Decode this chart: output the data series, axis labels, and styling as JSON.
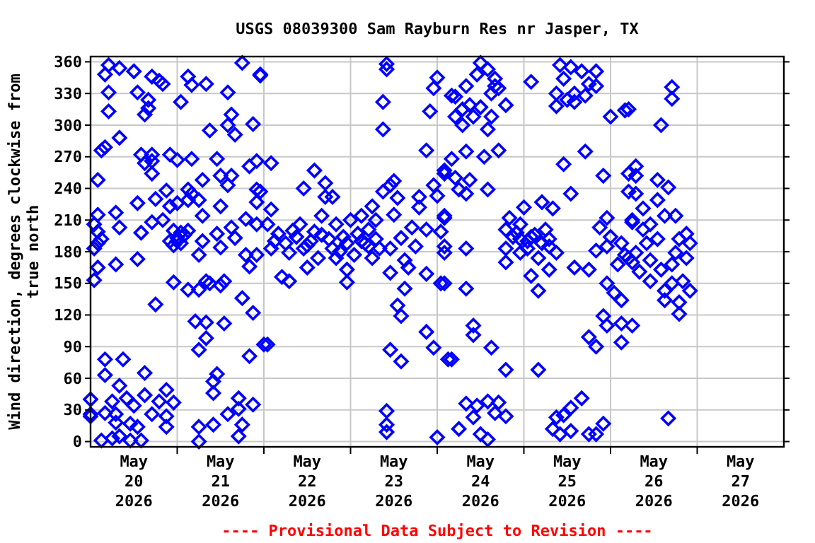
{
  "chart_data": {
    "type": "scatter",
    "title": "USGS 08039300 Sam Rayburn Res nr Jasper, TX",
    "ylabel": "Wind direction, degrees clockwise from true north",
    "annotations": [
      "---- Provisional Data Subject to Revision ----"
    ],
    "marker": "diamond",
    "grid": true,
    "xlim": [
      "2026-05-20",
      "2026-05-28"
    ],
    "xticks": [
      {
        "value": "2026-05-21",
        "label": null
      },
      {
        "value": "2026-05-22",
        "label": null
      },
      {
        "value": "2026-05-23",
        "label": null
      },
      {
        "value": "2026-05-24",
        "label": null
      },
      {
        "value": "2026-05-25",
        "label": null
      },
      {
        "value": "2026-05-26",
        "label": null
      },
      {
        "value": "2026-05-27",
        "label": null
      },
      {
        "value": "2026-05-20T12:00",
        "label": "May\n20\n2026"
      },
      {
        "value": "2026-05-21T12:00",
        "label": "May\n21\n2026"
      },
      {
        "value": "2026-05-22T12:00",
        "label": "May\n22\n2026"
      },
      {
        "value": "2026-05-23T12:00",
        "label": "May\n23\n2026"
      },
      {
        "value": "2026-05-24T12:00",
        "label": "May\n24\n2026"
      },
      {
        "value": "2026-05-25T12:00",
        "label": "May\n25\n2026"
      },
      {
        "value": "2026-05-26T12:00",
        "label": "May\n26\n2026"
      },
      {
        "value": "2026-05-27T12:00",
        "label": "May\n27\n2026"
      }
    ],
    "ylim": [
      -5,
      365
    ],
    "yticks": [
      0,
      30,
      60,
      90,
      120,
      150,
      180,
      210,
      240,
      270,
      300,
      330,
      360
    ],
    "series": [
      {
        "color": "#0000ff",
        "x": [
          "2026-05-20T05:00",
          "2026-05-20T08:00",
          "2026-05-20T12:00",
          "2026-05-20T04:00",
          "2026-05-20T17:00",
          "2026-05-20T19:00",
          "2026-05-20T20:00",
          "2026-05-21T03:00",
          "2026-05-21T04:00",
          "2026-05-21T08:00",
          "2026-05-21T18:00",
          "2026-05-21T23:00",
          "2026-05-20T05:00",
          "2026-05-20T13:00",
          "2026-05-20T16:00",
          "2026-05-21T14:00",
          "2026-05-21T01:00",
          "2026-05-20T05:00",
          "2026-05-20T15:00",
          "2026-05-20T16:00",
          "2026-05-21T15:00",
          "2026-05-21T14:00",
          "2026-05-21T21:00",
          "2026-05-21T09:00",
          "2026-05-21T16:00",
          "2026-05-20T08:00",
          "2026-05-20T04:00",
          "2026-05-20T03:00",
          "2026-05-20T14:00",
          "2026-05-20T17:00",
          "2026-05-20T22:00",
          "2026-05-20T15:00",
          "2026-05-20T17:00",
          "2026-05-21T00:00",
          "2026-05-21T04:00",
          "2026-05-21T11:00",
          "2026-05-21T20:00",
          "2026-05-21T22:00",
          "2026-05-20T17:00",
          "2026-05-20T02:00",
          "2026-05-21T07:00",
          "2026-05-21T12:00",
          "2026-05-21T15:00",
          "2026-05-21T14:00",
          "2026-05-20T21:00",
          "2026-05-21T03:00",
          "2026-05-21T04:00",
          "2026-05-21T22:00",
          "2026-05-20T13:00",
          "2026-05-20T18:00",
          "2026-05-20T22:00",
          "2026-05-21T00:00",
          "2026-05-21T03:00",
          "2026-05-21T06:00",
          "2026-05-21T12:00",
          "2026-05-21T22:00",
          "2026-05-20T02:00",
          "2026-05-20T07:00",
          "2026-05-21T07:00",
          "2026-05-21T19:00",
          "2026-05-21T22:00",
          "2026-05-20T01:00",
          "2026-05-20T08:00",
          "2026-05-20T17:00",
          "2026-05-20T20:00",
          "2026-05-20T02:00",
          "2026-05-20T03:00",
          "2026-05-20T14:00",
          "2026-05-20T23:00",
          "2026-05-21T03:00",
          "2026-05-21T00:00",
          "2026-05-21T01:00",
          "2026-05-21T11:00",
          "2026-05-21T15:00",
          "2026-05-21T16:00",
          "2026-05-21T07:00",
          "2026-05-20T01:00",
          "2026-05-20T02:00",
          "2026-05-21T06:00",
          "2026-05-21T12:00",
          "2026-05-21T19:00",
          "2026-05-21T22:00",
          "2026-05-21T20:00",
          "2026-05-20T13:00",
          "2026-05-20T07:00",
          "2026-05-20T02:00",
          "2026-05-20T01:00",
          "2026-05-20T23:00",
          "2026-05-21T03:00",
          "2026-05-21T06:00",
          "2026-05-21T08:00",
          "2026-05-21T09:00",
          "2026-05-21T12:00",
          "2026-05-21T13:00",
          "2026-05-21T18:00",
          "2026-05-20T18:00",
          "2026-05-21T21:00",
          "2026-05-21T05:00",
          "2026-05-21T08:00",
          "2026-05-21T13:00",
          "2026-05-21T08:00",
          "2026-05-21T06:00",
          "2026-05-22T00:00",
          "2026-05-20T04:00",
          "2026-05-20T09:00",
          "2026-05-21T20:00",
          "2026-05-20T04:00",
          "2026-05-20T15:00",
          "2026-05-21T11:00",
          "2026-05-21T10:00",
          "2026-05-20T08:00",
          "2026-05-20T00:00",
          "2026-05-20T21:00",
          "2026-05-21T10:00",
          "2026-05-20T15:00",
          "2026-05-21T17:00",
          "2026-05-20T06:00",
          "2026-05-20T10:00",
          "2026-05-20T19:00",
          "2026-05-20T23:00",
          "2026-05-21T21:00",
          "2026-05-20T12:00",
          "2026-05-20T00:00",
          "2026-05-20T07:00",
          "2026-05-20T17:00",
          "2026-05-20T21:00",
          "2026-05-21T14:00",
          "2026-05-21T17:00",
          "2026-05-20T11:00",
          "2026-05-20T13:00",
          "2026-05-20T07:00",
          "2026-05-20T21:00",
          "2026-05-21T10:00",
          "2026-05-21T06:00",
          "2026-05-21T18:00",
          "2026-05-20T03:00",
          "2026-05-20T06:00",
          "2026-05-20T08:00",
          "2026-05-20T11:00",
          "2026-05-20T14:00",
          "2026-05-21T06:00",
          "2026-05-21T17:00",
          "2026-05-20T00:00",
          "2026-05-20T04:00",
          "2026-05-21T00:00",
          "2026-05-20T22:00",
          "2026-05-21T02:00",
          "2026-05-20T23:00",
          "2026-05-21T01:00",
          "2026-05-21T23:00",
          "2026-05-22T02:00",
          "2026-05-21T23:00",
          "2026-05-22T14:00",
          "2026-05-22T11:00",
          "2026-05-22T17:00",
          "2026-05-22T19:00",
          "2026-05-22T17:00",
          "2026-05-22T02:00",
          "2026-05-22T05:00",
          "2026-05-22T07:00",
          "2026-05-22T23:00",
          "2026-05-22T23:00",
          "2026-05-22T01:00",
          "2026-05-22T01:00",
          "2026-05-22T02:00",
          "2026-05-22T04:00",
          "2026-05-22T06:00",
          "2026-05-22T07:00",
          "2026-05-22T09:00",
          "2026-05-22T10:00",
          "2026-05-22T11:00",
          "2026-05-22T12:00",
          "2026-05-22T13:00",
          "2026-05-22T14:00",
          "2026-05-22T15:00",
          "2026-05-22T16:00",
          "2026-05-22T18:00",
          "2026-05-22T19:00",
          "2026-05-22T20:00",
          "2026-05-22T20:00",
          "2026-05-22T22:00",
          "2026-05-22T23:00",
          "2026-05-23T00:00",
          "2026-05-23T01:00",
          "2026-05-23T02:00",
          "2026-05-23T03:00",
          "2026-05-23T04:00",
          "2026-05-23T05:00",
          "2026-05-23T06:00",
          "2026-05-23T06:00",
          "2026-05-23T07:00",
          "2026-05-23T07:00",
          "2026-05-23T08:00",
          "2026-05-23T09:00",
          "2026-05-23T10:00",
          "2026-05-23T10:00",
          "2026-05-23T09:00",
          "2026-05-23T09:00",
          "2026-05-23T11:00",
          "2026-05-23T12:00",
          "2026-05-23T13:00",
          "2026-05-23T12:00",
          "2026-05-23T11:00",
          "2026-05-23T11:00",
          "2026-05-23T14:00",
          "2026-05-23T15:00",
          "2026-05-23T15:00",
          "2026-05-23T13:00",
          "2026-05-23T14:00",
          "2026-05-23T11:00",
          "2026-05-23T14:00",
          "2026-05-23T10:00",
          "2026-05-23T10:00",
          "2026-05-23T10:00",
          "2026-05-23T16:00",
          "2026-05-23T17:00",
          "2026-05-23T19:00",
          "2026-05-23T19:00",
          "2026-05-23T18:00",
          "2026-05-23T21:00",
          "2026-05-23T21:00",
          "2026-05-23T22:00",
          "2026-05-23T23:00",
          "2026-05-24T00:00",
          "2026-05-23T21:00",
          "2026-05-23T21:00",
          "2026-05-23T23:00",
          "2026-05-24T00:00",
          "2026-05-24T01:00",
          "2026-05-24T02:00",
          "2026-05-24T01:00",
          "2026-05-24T02:00",
          "2026-05-24T00:00",
          "2026-05-24T02:00",
          "2026-05-23T23:00",
          "2026-05-24T04:00",
          "2026-05-24T03:00",
          "2026-05-22T03:00",
          "2026-05-22T08:00",
          "2026-05-22T12:00",
          "2026-05-22T16:00",
          "2026-05-22T21:00",
          "2026-05-23T03:00",
          "2026-05-23T05:00",
          "2026-05-24T12:00",
          "2026-05-24T11:00",
          "2026-05-24T14:00",
          "2026-05-24T16:00",
          "2026-05-24T16:00",
          "2026-05-24T17:00",
          "2026-05-24T08:00",
          "2026-05-24T05:00",
          "2026-05-24T15:00",
          "2026-05-24T19:00",
          "2026-05-24T07:00",
          "2026-05-24T09:00",
          "2026-05-24T12:00",
          "2026-05-24T05:00",
          "2026-05-24T10:00",
          "2026-05-24T15:00",
          "2026-05-24T07:00",
          "2026-05-24T14:00",
          "2026-05-25T02:00",
          "2026-05-25T10:00",
          "2026-05-25T13:00",
          "2026-05-25T16:00",
          "2026-05-25T20:00",
          "2026-05-25T11:00",
          "2026-05-25T18:00",
          "2026-05-25T20:00",
          "2026-05-25T09:00",
          "2026-05-25T14:00",
          "2026-05-25T17:00",
          "2026-05-25T09:00",
          "2026-05-25T12:00",
          "2026-05-25T14:00",
          "2026-05-26T00:00",
          "2026-05-26T04:00",
          "2026-05-24T04:00",
          "2026-05-24T08:00",
          "2026-05-24T13:00",
          "2026-05-24T17:00",
          "2026-05-24T02:00",
          "2026-05-24T05:00",
          "2026-05-24T09:00",
          "2026-05-24T06:00",
          "2026-05-24T08:00",
          "2026-05-24T14:00",
          "2026-05-24T02:00",
          "2026-05-24T02:00",
          "2026-05-24T08:00",
          "2026-05-24T02:00",
          "2026-05-24T08:00",
          "2026-05-25T17:00",
          "2026-05-25T11:00",
          "2026-05-25T13:00",
          "2026-05-25T22:00",
          "2026-05-26T05:00",
          "2026-05-26T05:00",
          "2026-05-25T23:00",
          "2026-05-26T06:00",
          "2026-05-25T00:00",
          "2026-05-25T05:00",
          "2026-05-25T08:00",
          "2026-05-24T20:00",
          "2026-05-24T23:00",
          "2026-05-24T19:00",
          "2026-05-24T21:00",
          "2026-05-24T23:00",
          "2026-05-25T02:00",
          "2026-05-25T06:00",
          "2026-05-25T07:00",
          "2026-05-24T19:00",
          "2026-05-24T23:00",
          "2026-05-25T01:00",
          "2026-05-25T04:00",
          "2026-05-25T07:00",
          "2026-05-25T09:00",
          "2026-05-24T19:00",
          "2026-05-25T02:00",
          "2026-05-25T07:00",
          "2026-05-25T04:00",
          "2026-05-25T14:00",
          "2026-05-25T18:00",
          "2026-05-25T21:00",
          "2026-05-26T00:00",
          "2026-05-25T20:00",
          "2026-05-25T23:00",
          "2026-05-26T03:00",
          "2026-05-26T04:00",
          "2026-05-26T02:00",
          "2026-05-25T23:00",
          "2026-05-26T01:00",
          "2026-05-26T03:00",
          "2026-05-26T06:00",
          "2026-05-25T22:00",
          "2026-05-25T23:00",
          "2026-05-26T03:00",
          "2026-05-26T06:00",
          "2026-05-25T18:00",
          "2026-05-25T20:00",
          "2026-05-26T03:00",
          "2026-05-24T10:00",
          "2026-05-24T10:00",
          "2026-05-24T15:00",
          "2026-05-24T04:00",
          "2026-05-24T19:00",
          "2026-05-25T04:00",
          "2026-05-24T08:00",
          "2026-05-24T11:00",
          "2026-05-24T14:00",
          "2026-05-24T17:00",
          "2026-05-24T10:00",
          "2026-05-24T16:00",
          "2026-05-24T19:00",
          "2026-05-24T06:00",
          "2026-05-24T12:00",
          "2026-05-24T14:00",
          "2026-05-25T16:00",
          "2026-05-25T13:00",
          "2026-05-25T11:00",
          "2026-05-25T09:00",
          "2026-05-25T08:00",
          "2026-05-25T10:00",
          "2026-05-25T13:00",
          "2026-05-25T18:00",
          "2026-05-25T20:00",
          "2026-05-25T22:00",
          "2026-05-25T01:00",
          "2026-05-24T22:00",
          "2026-05-25T05:00",
          "2026-05-25T03:00",
          "2026-05-26T17:00",
          "2026-05-26T17:00",
          "2026-05-26T14:00",
          "2026-05-26T05:00",
          "2026-05-26T07:00",
          "2026-05-26T07:00",
          "2026-05-26T13:00",
          "2026-05-26T16:00",
          "2026-05-26T13:00",
          "2026-05-26T07:00",
          "2026-05-26T09:00",
          "2026-05-26T15:00",
          "2026-05-26T18:00",
          "2026-05-26T11:00",
          "2026-05-26T09:00",
          "2026-05-26T06:00",
          "2026-05-26T21:00",
          "2026-05-26T19:00",
          "2026-05-26T22:00",
          "2026-05-26T10:00",
          "2026-05-26T13:00",
          "2026-05-26T07:00",
          "2026-05-26T18:00",
          "2026-05-26T21:00",
          "2026-05-26T11:00",
          "2026-05-26T14:00",
          "2026-05-26T17:00",
          "2026-05-26T08:00",
          "2026-05-26T11:00",
          "2026-05-26T17:00",
          "2026-05-26T20:00",
          "2026-05-26T22:00",
          "2026-05-26T15:00",
          "2026-05-26T15:00",
          "2026-05-26T19:00",
          "2026-05-26T19:00",
          "2026-05-26T16:00",
          "2026-05-26T05:00"
        ],
        "values": [
          357,
          354,
          351,
          348,
          346,
          342,
          339,
          346,
          338,
          339,
          359,
          347,
          331,
          331,
          324,
          331,
          322,
          313,
          310,
          316,
          310,
          300,
          301,
          295,
          291,
          288,
          279,
          276,
          272,
          272,
          272,
          264,
          266,
          267,
          268,
          268,
          261,
          266,
          254,
          248,
          248,
          252,
          252,
          243,
          238,
          239,
          235,
          239,
          226,
          230,
          223,
          226,
          229,
          229,
          223,
          227,
          215,
          217,
          214,
          211,
          206,
          206,
          203,
          208,
          210,
          199,
          192,
          198,
          200,
          200,
          190,
          188,
          197,
          203,
          193,
          190,
          183,
          188,
          177,
          184,
          177,
          177,
          166,
          173,
          168,
          165,
          153,
          151,
          144,
          144,
          152,
          150,
          148,
          152,
          136,
          130,
          122,
          114,
          113,
          112,
          98,
          87,
          92,
          78,
          78,
          81,
          63,
          65,
          64,
          57,
          53,
          40,
          49,
          46,
          44,
          41,
          38,
          41,
          38,
          37,
          35,
          34,
          26,
          26,
          26,
          24,
          26,
          31,
          17,
          14,
          18,
          14,
          16,
          14,
          16,
          1,
          3,
          5,
          1,
          1,
          0,
          5,
          24,
          27,
          193,
          190,
          196,
          186,
          198,
          348,
          264,
          237,
          257,
          240,
          245,
          232,
          232,
          220,
          156,
          152,
          163,
          151,
          92,
          206,
          183,
          197,
          188,
          179,
          194,
          206,
          183,
          165,
          190,
          199,
          174,
          214,
          192,
          183,
          174,
          206,
          194,
          188,
          210,
          177,
          197,
          214,
          188,
          201,
          174,
          223,
          192,
          210,
          183,
          237,
          358,
          353,
          322,
          296,
          243,
          247,
          231,
          215,
          183,
          160,
          193,
          172,
          145,
          129,
          119,
          87,
          76,
          29,
          16,
          9,
          165,
          203,
          232,
          222,
          185,
          159,
          201,
          313,
          335,
          345,
          276,
          104,
          89,
          4,
          150,
          179,
          199,
          212,
          233,
          254,
          243,
          328,
          78,
          190,
          200,
          186,
          196,
          180,
          190,
          185,
          359,
          348,
          353,
          344,
          337,
          335,
          337,
          327,
          330,
          319,
          315,
          319,
          317,
          308,
          308,
          308,
          300,
          296,
          341,
          357,
          355,
          351,
          351,
          344,
          339,
          337,
          330,
          330,
          328,
          318,
          324,
          322,
          308,
          314,
          268,
          275,
          270,
          276,
          257,
          250,
          248,
          239,
          235,
          239,
          214,
          185,
          183,
          150,
          145,
          275,
          263,
          235,
          252,
          254,
          237,
          212,
          210,
          222,
          227,
          221,
          212,
          206,
          201,
          194,
          192,
          194,
          201,
          192,
          183,
          179,
          183,
          174,
          185,
          179,
          170,
          157,
          163,
          143,
          165,
          163,
          203,
          194,
          181,
          185,
          188,
          177,
          168,
          150,
          141,
          134,
          170,
          119,
          110,
          112,
          110,
          99,
          90,
          94,
          110,
          101,
          89,
          78,
          68,
          68,
          36,
          34,
          38,
          37,
          23,
          27,
          24,
          12,
          7,
          2,
          41,
          32,
          25,
          23,
          12,
          7,
          10,
          7,
          7,
          17,
          190,
          198,
          188,
          196,
          336,
          325,
          300,
          315,
          261,
          252,
          248,
          241,
          229,
          235,
          221,
          214,
          214,
          206,
          201,
          208,
          197,
          192,
          188,
          188,
          192,
          179,
          179,
          174,
          172,
          163,
          168,
          161,
          152,
          150,
          152,
          143,
          143,
          134,
          132,
          121,
          22,
          174
        ]
      }
    ]
  }
}
